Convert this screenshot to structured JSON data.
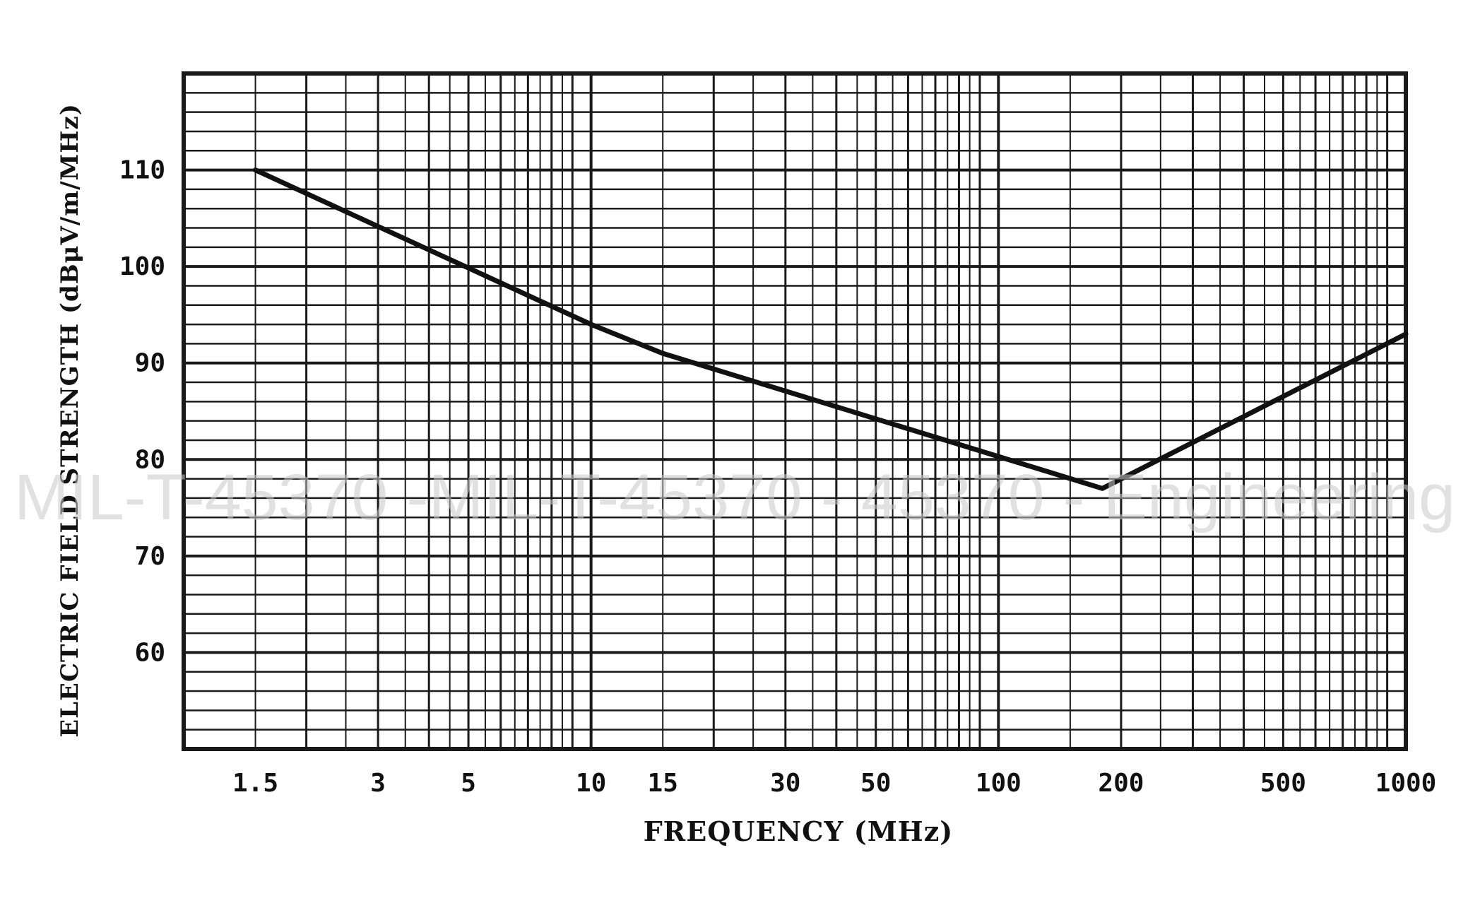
{
  "chart_data": {
    "type": "line",
    "xscale": "log",
    "x_ticks": [
      1.5,
      3,
      5,
      10,
      15,
      30,
      50,
      100,
      200,
      500,
      1000
    ],
    "x_tick_labels": [
      "1.5",
      "3",
      "5",
      "10",
      "15",
      "30",
      "50",
      "100",
      "200",
      "500",
      "1000"
    ],
    "y_ticks": [
      60,
      70,
      80,
      90,
      100,
      110
    ],
    "y_tick_labels": [
      "60",
      "70",
      "80",
      "90",
      "100",
      "110"
    ],
    "xlim": [
      1,
      1000
    ],
    "ylim": [
      50,
      120
    ],
    "xlabel": "FREQUENCY (MHz)",
    "ylabel": "ELECTRIC FIELD STRENGTH (dBμV/m/MHz)",
    "grid": true,
    "series": [
      {
        "x": [
          1.5,
          10,
          15,
          180,
          1000
        ],
        "y": [
          110,
          94,
          91,
          77,
          93
        ]
      }
    ],
    "watermark": "MIL-T-45370 -MIL-T-45370 - 45370 - Engineering",
    "colors": {
      "line": "#111111",
      "grid": "#1a1a1a",
      "background": "#ffffff"
    }
  }
}
